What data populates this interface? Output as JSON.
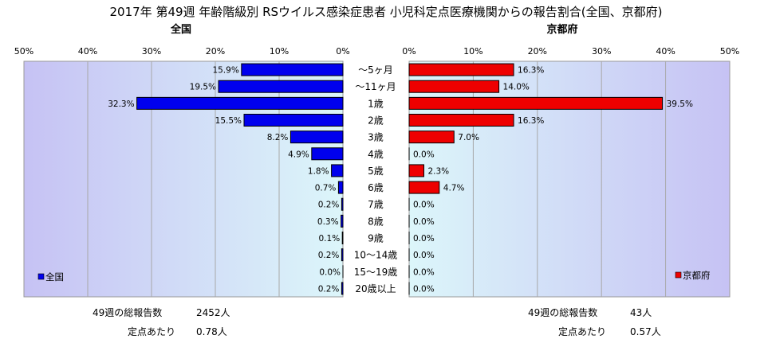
{
  "title": "2017年 第49週 年齢階級別 RSウイルス感染症患者 小児科定点医療機関からの報告割合(全国、京都府)",
  "chart_data": [
    {
      "type": "bar",
      "orientation": "horizontal",
      "direction": "right-to-left",
      "title": "全国",
      "categories": [
        "～5ヶ月",
        "～11ヶ月",
        "1歳",
        "2歳",
        "3歳",
        "4歳",
        "5歳",
        "6歳",
        "7歳",
        "8歳",
        "9歳",
        "10～14歳",
        "15～19歳",
        "20歳以上"
      ],
      "series": [
        {
          "name": "全国",
          "color": "#0000ee",
          "values": [
            15.9,
            19.5,
            32.3,
            15.5,
            8.2,
            4.9,
            1.8,
            0.7,
            0.2,
            0.3,
            0.1,
            0.2,
            0.0,
            0.2
          ]
        }
      ],
      "data_labels": [
        "15.9%",
        "19.5%",
        "32.3%",
        "15.5%",
        "8.2%",
        "4.9%",
        "1.8%",
        "0.7%",
        "0.2%",
        "0.3%",
        "0.1%",
        "0.2%",
        "0.0%",
        "0.2%"
      ],
      "xlim": [
        0,
        50
      ],
      "x_ticks": [
        "50%",
        "40%",
        "30%",
        "20%",
        "10%",
        "0%"
      ],
      "grid": true,
      "legend": "bottom-left"
    },
    {
      "type": "bar",
      "orientation": "horizontal",
      "direction": "left-to-right",
      "title": "京都府",
      "categories": [
        "～5ヶ月",
        "～11ヶ月",
        "1歳",
        "2歳",
        "3歳",
        "4歳",
        "5歳",
        "6歳",
        "7歳",
        "8歳",
        "9歳",
        "10～14歳",
        "15～19歳",
        "20歳以上"
      ],
      "series": [
        {
          "name": "京都府",
          "color": "#ee0000",
          "values": [
            16.3,
            14.0,
            39.5,
            16.3,
            7.0,
            0.0,
            2.3,
            4.7,
            0.0,
            0.0,
            0.0,
            0.0,
            0.0,
            0.0
          ]
        }
      ],
      "data_labels": [
        "16.3%",
        "14.0%",
        "39.5%",
        "16.3%",
        "7.0%",
        "0.0%",
        "2.3%",
        "4.7%",
        "0.0%",
        "0.0%",
        "0.0%",
        "0.0%",
        "0.0%",
        "0.0%"
      ],
      "xlim": [
        0,
        50
      ],
      "x_ticks": [
        "0%",
        "10%",
        "20%",
        "30%",
        "40%",
        "50%"
      ],
      "grid": true,
      "legend": "bottom-right"
    }
  ],
  "footer": {
    "national": {
      "total_label": "49週の総報告数",
      "total_value": "2452人",
      "per_label": "定点あたり",
      "per_value": "0.78人"
    },
    "kyoto": {
      "total_label": "49週の総報告数",
      "total_value": "43人",
      "per_label": "定点あたり",
      "per_value": "0.57人"
    }
  }
}
